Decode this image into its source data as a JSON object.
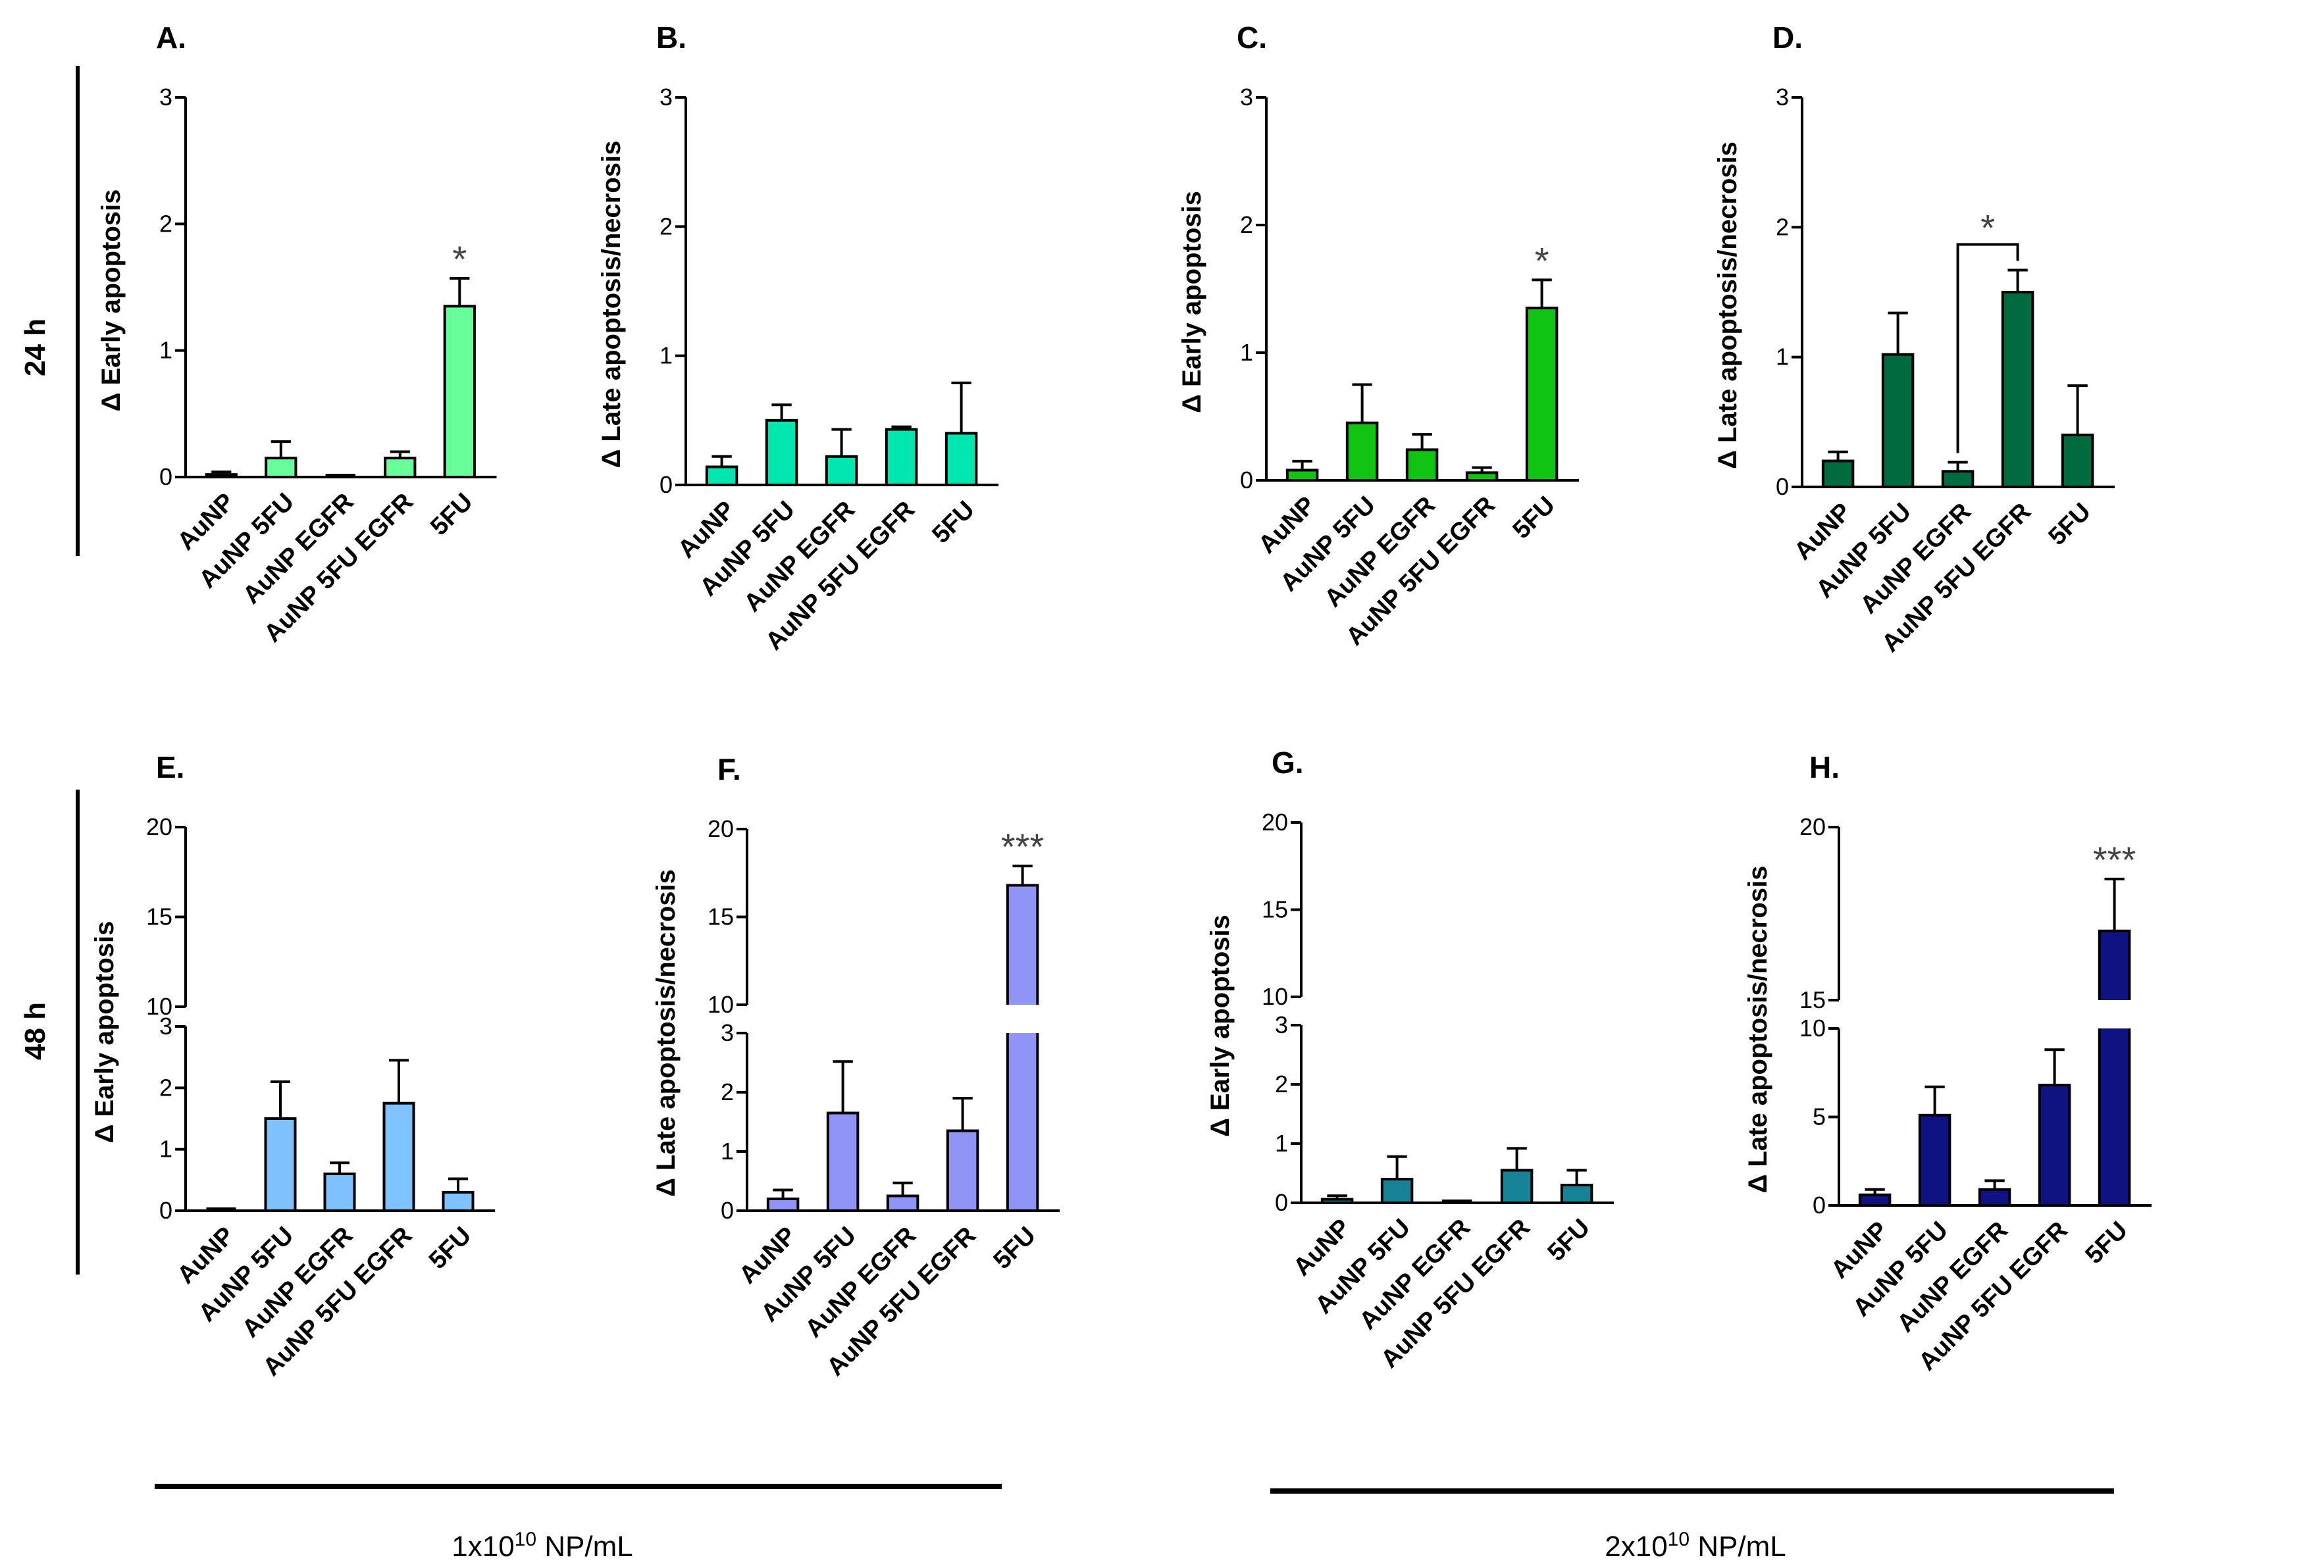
{
  "figure": {
    "time_labels": [
      "24 h",
      "48 h"
    ],
    "concentrations": [
      {
        "prefix": "1x10",
        "exp": "10",
        "suffix": " NP/mL"
      },
      {
        "prefix": "2x10",
        "exp": "10",
        "suffix": " NP/mL"
      }
    ]
  },
  "chart_data": [
    {
      "id": "A",
      "letter": "A.",
      "type": "bar",
      "ylabel": "Δ Early apoptosis",
      "categories": [
        "AuNP",
        "AuNP 5FU",
        "AuNP EGFR",
        "AuNP 5FU EGFR",
        "5FU"
      ],
      "values": [
        0.02,
        0.15,
        0,
        0.15,
        1.35
      ],
      "errors": [
        0.02,
        0.13,
        0,
        0.05,
        0.22
      ],
      "ylim": [
        0,
        3
      ],
      "yticks": [
        0,
        1,
        2,
        3
      ],
      "color": "#66ff99",
      "significance": [
        {
          "index": 4,
          "label": "*"
        }
      ]
    },
    {
      "id": "B",
      "letter": "B.",
      "type": "bar",
      "ylabel": "Δ Late apoptosis/necrosis",
      "categories": [
        "AuNP",
        "AuNP 5FU",
        "AuNP EGFR",
        "AuNP 5FU EGFR",
        "5FU"
      ],
      "values": [
        0.14,
        0.5,
        0.22,
        0.43,
        0.4
      ],
      "errors": [
        0.08,
        0.12,
        0.21,
        0.02,
        0.39
      ],
      "ylim": [
        0,
        3
      ],
      "yticks": [
        0,
        1,
        2,
        3
      ],
      "color": "#00e6b0",
      "significance": []
    },
    {
      "id": "C",
      "letter": "C.",
      "type": "bar",
      "ylabel": "Δ Early apoptosis",
      "categories": [
        "AuNP",
        "AuNP 5FU",
        "AuNP EGFR",
        "AuNP 5FU EGFR",
        "5FU"
      ],
      "values": [
        0.08,
        0.45,
        0.24,
        0.06,
        1.35
      ],
      "errors": [
        0.07,
        0.3,
        0.12,
        0.04,
        0.22
      ],
      "ylim": [
        0,
        3
      ],
      "yticks": [
        0,
        1,
        2,
        3
      ],
      "color": "#11c411",
      "significance": [
        {
          "index": 4,
          "label": "*"
        }
      ]
    },
    {
      "id": "D",
      "letter": "D.",
      "type": "bar",
      "ylabel": "Δ Late apoptosis/necrosis",
      "categories": [
        "AuNP",
        "AuNP 5FU",
        "AuNP EGFR",
        "AuNP 5FU EGFR",
        "5FU"
      ],
      "values": [
        0.2,
        1.02,
        0.12,
        1.5,
        0.4
      ],
      "errors": [
        0.07,
        0.32,
        0.07,
        0.17,
        0.38
      ],
      "ylim": [
        0,
        3
      ],
      "yticks": [
        0,
        1,
        2,
        3
      ],
      "color": "#006b3f",
      "significance": [
        {
          "bracket": [
            2,
            3
          ],
          "label": "*"
        }
      ]
    },
    {
      "id": "E",
      "letter": "E.",
      "type": "bar",
      "ylabel": "Δ Early apoptosis",
      "categories": [
        "AuNP",
        "AuNP 5FU",
        "AuNP EGFR",
        "AuNP 5FU EGFR",
        "5FU"
      ],
      "values": [
        0,
        1.5,
        0.6,
        1.75,
        0.3
      ],
      "errors": [
        0,
        0.6,
        0.18,
        0.7,
        0.22
      ],
      "ylim": [
        0,
        20
      ],
      "axis_break": [
        3,
        10
      ],
      "yticks": [
        0,
        1,
        2,
        3,
        10,
        15,
        20
      ],
      "color": "#7ec2ff",
      "significance": []
    },
    {
      "id": "F",
      "letter": "F.",
      "type": "bar",
      "ylabel": "Δ Late apoptosis/necrosis",
      "categories": [
        "AuNP",
        "AuNP 5FU",
        "AuNP EGFR",
        "AuNP 5FU EGFR",
        "5FU"
      ],
      "values": [
        0.2,
        1.65,
        0.25,
        1.35,
        16.8
      ],
      "errors": [
        0.15,
        0.87,
        0.22,
        0.55,
        1.1
      ],
      "ylim": [
        0,
        20
      ],
      "axis_break": [
        3,
        10
      ],
      "yticks": [
        0,
        1,
        2,
        3,
        10,
        15,
        20
      ],
      "color": "#9095f5",
      "significance": [
        {
          "index": 4,
          "label": "***"
        }
      ]
    },
    {
      "id": "G",
      "letter": "G.",
      "type": "bar",
      "ylabel": "Δ Early apoptosis",
      "categories": [
        "AuNP",
        "AuNP 5FU",
        "AuNP EGFR",
        "AuNP 5FU EGFR",
        "5FU"
      ],
      "values": [
        0.06,
        0.4,
        0,
        0.55,
        0.3
      ],
      "errors": [
        0.06,
        0.38,
        0,
        0.37,
        0.25
      ],
      "ylim": [
        0,
        20
      ],
      "axis_break": [
        3,
        10
      ],
      "yticks": [
        0,
        1,
        2,
        3,
        10,
        15,
        20
      ],
      "color": "#168296",
      "significance": []
    },
    {
      "id": "H",
      "letter": "H.",
      "type": "bar",
      "ylabel": "Δ Late apoptosis/necrosis",
      "categories": [
        "AuNP",
        "AuNP 5FU",
        "AuNP EGFR",
        "AuNP 5FU EGFR",
        "5FU"
      ],
      "values": [
        0.6,
        5.1,
        0.9,
        6.8,
        17
      ],
      "errors": [
        0.3,
        1.6,
        0.5,
        2,
        1.5
      ],
      "ylim": [
        0,
        20
      ],
      "axis_break": [
        10,
        15
      ],
      "yticks": [
        0,
        5,
        10,
        15,
        20
      ],
      "color": "#0f1282",
      "significance": [
        {
          "index": 4,
          "label": "***"
        }
      ]
    }
  ]
}
